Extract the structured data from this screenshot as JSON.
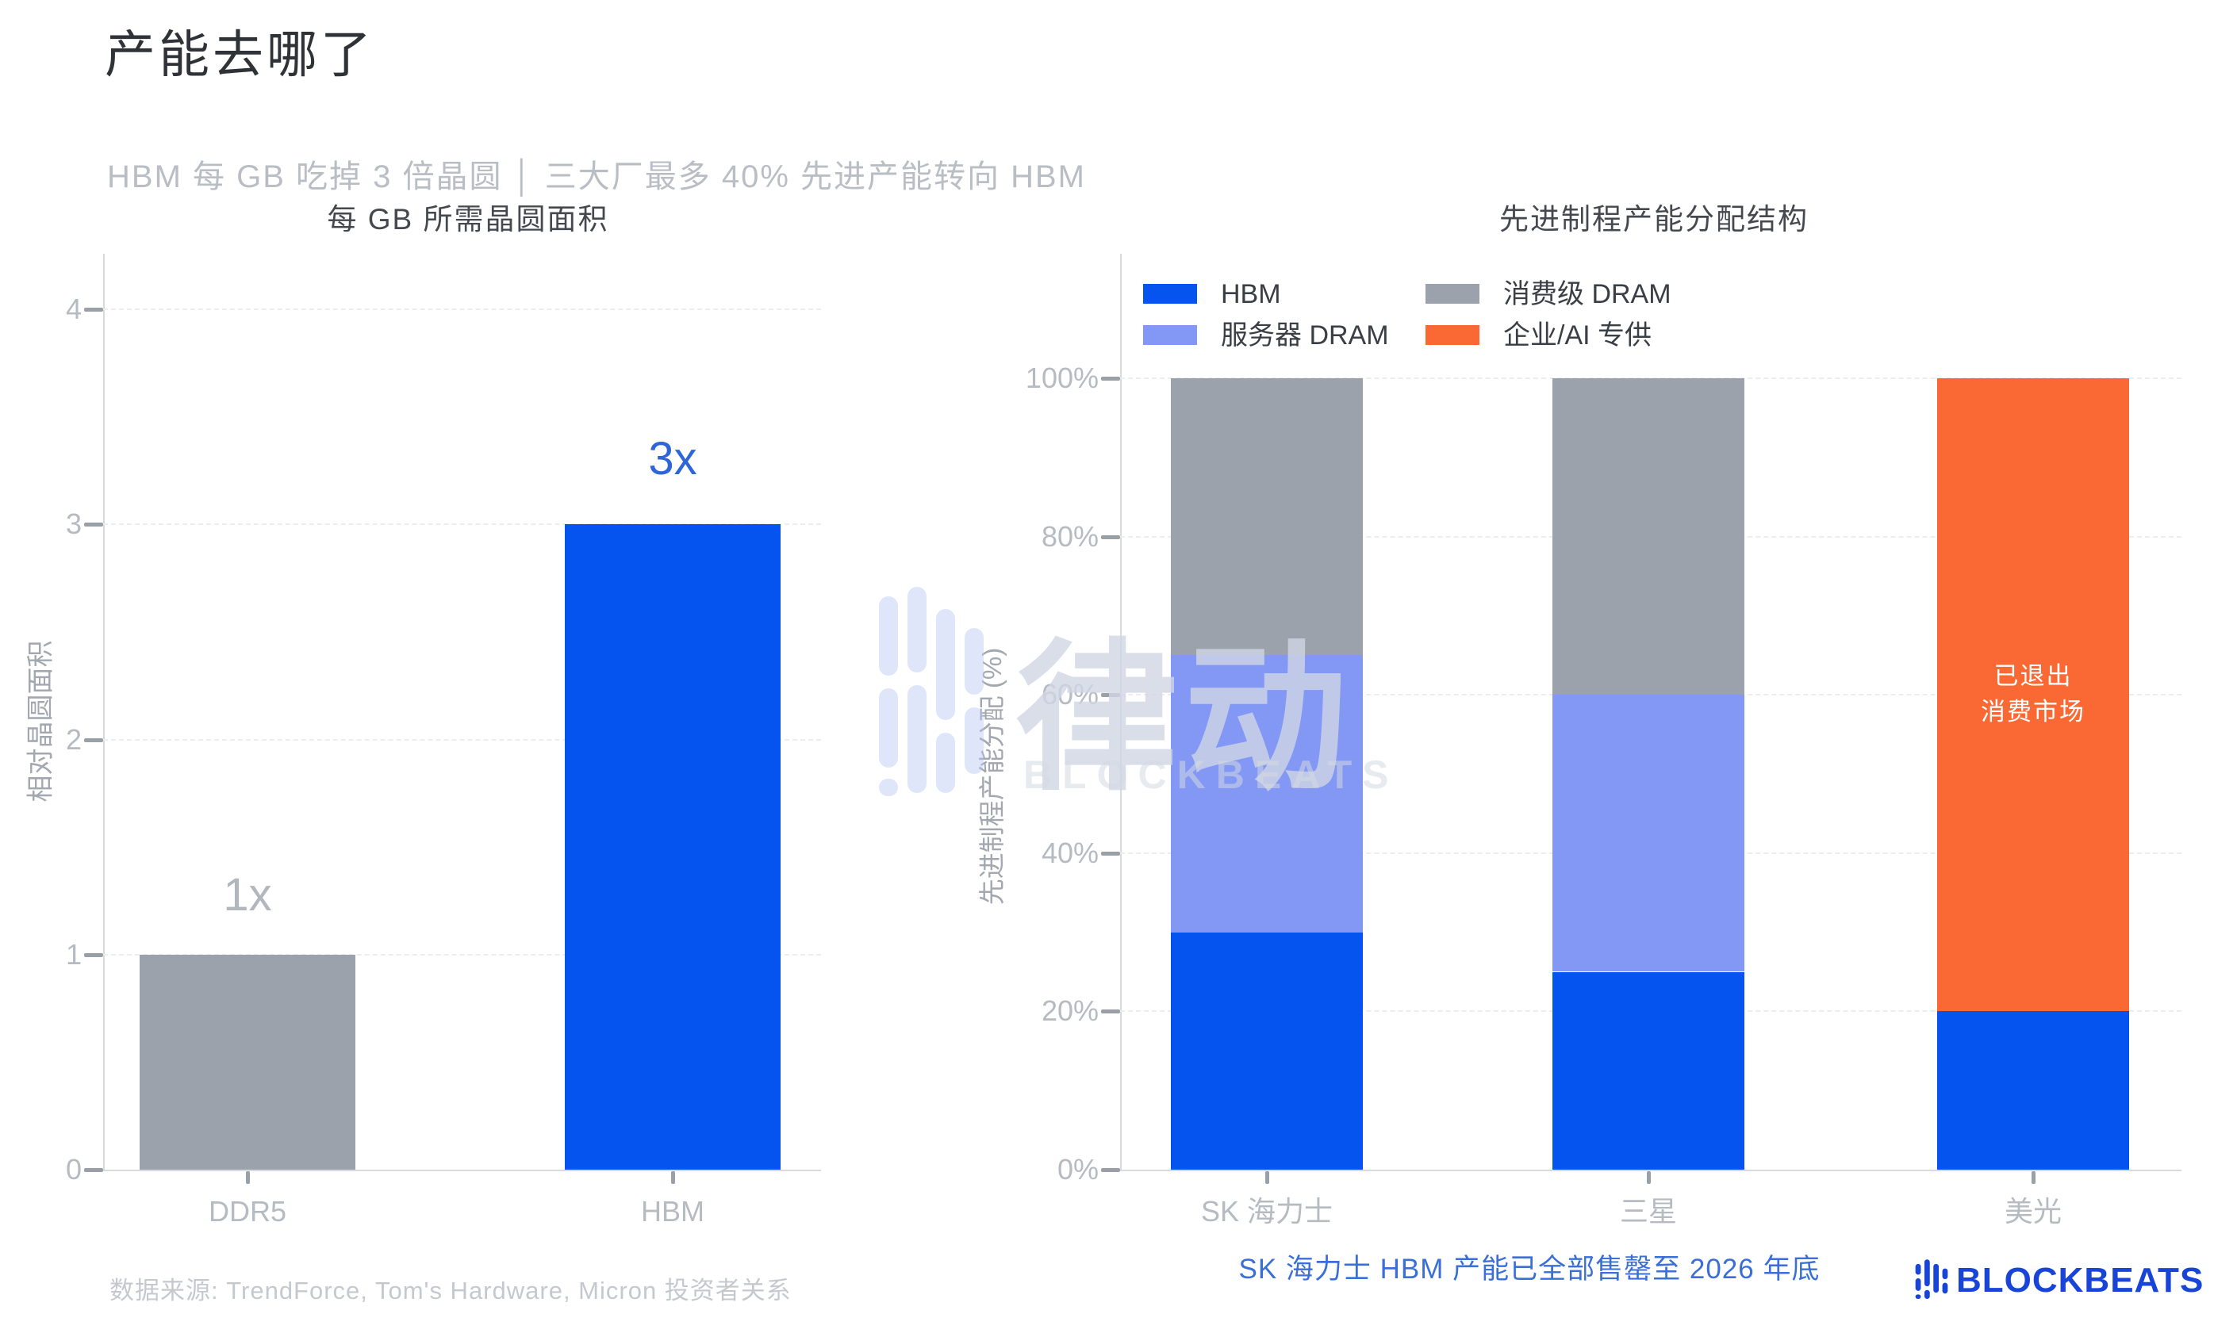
{
  "page": {
    "title": "产能去哪了",
    "subtitle": "HBM 每 GB 吃掉 3 倍晶圆 │ 三大厂最多 40% 先进产能转向 HBM",
    "annotation": "SK 海力士 HBM 产能已全部售罄至 2026 年底",
    "source_note": "数据来源: TrendForce, Tom's Hardware, Micron 投资者关系"
  },
  "colors": {
    "hbm_blue": "#0554F0",
    "server_dram_blue": "#8298F4",
    "consumer_dram_gray": "#9CA2AC",
    "enterprise_orange": "#FA6933",
    "annotation_blue": "#3A6FD8",
    "logo_blue": "#1845D8",
    "bar_label_gray": "#B2B7BE",
    "bar_label_blue": "#2E66D8"
  },
  "watermark": {
    "cn": "律动",
    "en": "BLOCKBEATS"
  },
  "footer": {
    "logo_text": "BLOCKBEATS"
  },
  "chart_data": [
    {
      "type": "bar",
      "title": "每 GB 所需晶圆面积",
      "ylabel": "相对晶圆面积",
      "categories": [
        "DDR5",
        "HBM"
      ],
      "values": [
        1,
        3
      ],
      "bar_labels": [
        "1x",
        "3x"
      ],
      "bar_colors": [
        "#9CA2AC",
        "#0554F0"
      ],
      "bar_label_colors": [
        "#B2B7BE",
        "#2E66D8"
      ],
      "ylim": [
        0,
        4
      ],
      "yticks": [
        0,
        1,
        2,
        3,
        4
      ],
      "grid": true
    },
    {
      "type": "stacked-bar",
      "title": "先进制程产能分配结构",
      "ylabel": "先进制程产能分配 (%)",
      "categories": [
        "SK 海力士",
        "三星",
        "美光"
      ],
      "series": [
        {
          "name": "HBM",
          "color": "#0554F0",
          "values": [
            30,
            25,
            20
          ]
        },
        {
          "name": "服务器 DRAM",
          "color": "#8298F4",
          "values": [
            35,
            35,
            0
          ]
        },
        {
          "name": "消费级 DRAM",
          "color": "#9CA2AC",
          "values": [
            35,
            40,
            0
          ]
        },
        {
          "name": "企业/AI 专供",
          "color": "#FA6933",
          "values": [
            0,
            0,
            80
          ]
        }
      ],
      "ylim": [
        0,
        100
      ],
      "yticks": [
        "0%",
        "20%",
        "40%",
        "60%",
        "80%",
        "100%"
      ],
      "ytick_values": [
        0,
        20,
        40,
        60,
        80,
        100
      ],
      "exit_note": {
        "category": "美光",
        "lines": [
          "已退出",
          "消费市场"
        ]
      },
      "legend_position": "top",
      "grid": true
    }
  ]
}
